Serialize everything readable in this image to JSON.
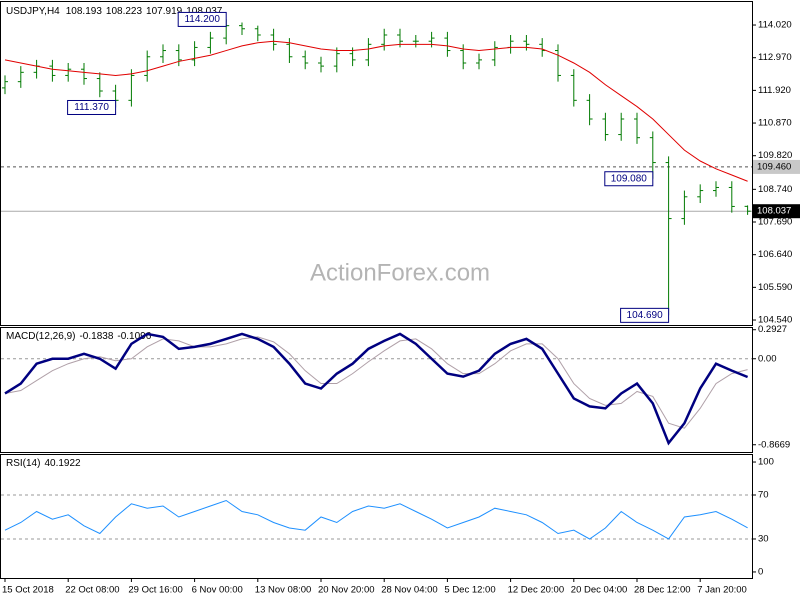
{
  "chart_data": [
    {
      "type": "ohlc",
      "title": "USDJPY,H4",
      "color": "#007a00",
      "watermark": "ActionForex.com",
      "categories": [
        "15 Oct 2018",
        null,
        null,
        null,
        "22 Oct 08:00",
        null,
        null,
        null,
        "29 Oct 16:00",
        null,
        null,
        null,
        "6 Nov 00:00",
        null,
        null,
        null,
        "13 Nov 08:00",
        null,
        null,
        null,
        "20 Nov 20:00",
        null,
        null,
        null,
        "28 Nov 04:00",
        null,
        null,
        null,
        "5 Dec 12:00",
        null,
        null,
        null,
        "12 Dec 20:00",
        null,
        null,
        null,
        "20 Dec 04:00",
        null,
        null,
        null,
        "28 Dec 12:00",
        null,
        null,
        null,
        "7 Jan 20:00",
        null,
        null,
        null
      ],
      "open": [
        112.0,
        112.2,
        112.5,
        112.7,
        112.4,
        112.6,
        112.3,
        111.9,
        111.6,
        112.4,
        113.0,
        113.2,
        112.9,
        113.3,
        113.6,
        114.0,
        113.9,
        113.7,
        113.4,
        113.0,
        112.8,
        112.7,
        113.1,
        112.9,
        113.4,
        113.7,
        113.5,
        113.5,
        113.6,
        113.2,
        112.8,
        112.9,
        113.3,
        113.5,
        113.4,
        113.2,
        112.4,
        111.6,
        111.0,
        110.5,
        111.0,
        110.4,
        109.6,
        107.8,
        108.5,
        108.7,
        108.8,
        108.193
      ],
      "high": [
        112.4,
        112.7,
        112.9,
        112.9,
        112.8,
        112.8,
        112.5,
        112.1,
        112.6,
        113.2,
        113.4,
        113.4,
        113.5,
        113.8,
        114.2,
        114.1,
        114.0,
        113.9,
        113.6,
        113.2,
        113.0,
        113.3,
        113.3,
        113.6,
        113.9,
        113.9,
        113.7,
        113.8,
        113.8,
        113.4,
        113.1,
        113.5,
        113.7,
        113.7,
        113.6,
        113.4,
        112.6,
        111.8,
        111.2,
        111.2,
        111.2,
        110.6,
        109.8,
        108.7,
        108.9,
        109.0,
        109.0,
        108.223
      ],
      "low": [
        111.8,
        112.0,
        112.3,
        112.2,
        112.2,
        112.1,
        111.7,
        111.37,
        111.4,
        112.2,
        112.8,
        112.7,
        112.7,
        113.1,
        113.4,
        113.7,
        113.5,
        113.2,
        112.8,
        112.6,
        112.5,
        112.5,
        112.7,
        112.7,
        113.2,
        113.3,
        113.3,
        113.3,
        113.0,
        112.6,
        112.6,
        112.7,
        113.1,
        113.2,
        113.0,
        112.2,
        111.4,
        110.8,
        110.3,
        110.3,
        110.2,
        109.08,
        104.69,
        107.6,
        108.3,
        108.5,
        107.99,
        107.919
      ],
      "close": [
        112.2,
        112.5,
        112.7,
        112.4,
        112.6,
        112.3,
        111.9,
        111.6,
        112.4,
        113.0,
        113.2,
        112.9,
        113.3,
        113.6,
        114.0,
        113.9,
        113.7,
        113.4,
        113.0,
        112.8,
        112.7,
        113.1,
        112.9,
        113.4,
        113.7,
        113.5,
        113.5,
        113.6,
        113.2,
        112.8,
        112.9,
        113.3,
        113.5,
        113.4,
        113.2,
        112.4,
        111.6,
        111.0,
        110.5,
        111.0,
        110.4,
        109.6,
        107.8,
        108.5,
        108.7,
        108.8,
        108.19,
        108.037
      ],
      "ma": {
        "color": "#e00000",
        "values": [
          112.9,
          112.8,
          112.7,
          112.6,
          112.55,
          112.5,
          112.45,
          112.4,
          112.45,
          112.55,
          112.7,
          112.85,
          112.95,
          113.05,
          113.2,
          113.35,
          113.45,
          113.5,
          113.45,
          113.35,
          113.25,
          113.2,
          113.2,
          113.25,
          113.35,
          113.4,
          113.4,
          113.4,
          113.35,
          113.25,
          113.2,
          113.25,
          113.3,
          113.3,
          113.25,
          113.05,
          112.8,
          112.5,
          112.1,
          111.75,
          111.4,
          111.0,
          110.5,
          110.0,
          109.65,
          109.4,
          109.2,
          109.0
        ]
      },
      "ylim": [
        104.38,
        114.76
      ],
      "yticks": [
        {
          "value": 114.02,
          "label": "114.020"
        },
        {
          "value": 112.97,
          "label": "112.970"
        },
        {
          "value": 111.92,
          "label": "111.920"
        },
        {
          "value": 110.87,
          "label": "110.870"
        },
        {
          "value": 109.82,
          "label": "109.820"
        },
        {
          "value": 108.74,
          "label": "108.740"
        },
        {
          "value": 107.69,
          "label": "107.690"
        },
        {
          "value": 106.64,
          "label": "106.640"
        },
        {
          "value": 105.59,
          "label": "105.590"
        },
        {
          "value": 104.54,
          "label": "104.540"
        }
      ],
      "levels": [
        {
          "value": 109.46,
          "label": "109.460"
        }
      ],
      "annotations": [
        {
          "bar": 14,
          "value": 114.2,
          "label": "114.200"
        },
        {
          "bar": 7,
          "value": 111.37,
          "label": "111.370"
        },
        {
          "bar": 41,
          "value": 109.08,
          "label": "109.080"
        },
        {
          "bar": 42,
          "value": 104.69,
          "label": "104.690"
        }
      ]
    },
    {
      "type": "line",
      "title": "MACD(12,26,9)",
      "series": [
        {
          "color": "#000080",
          "width": 2.5,
          "values": [
            -0.35,
            -0.25,
            -0.05,
            0.0,
            0.0,
            0.05,
            0.0,
            -0.1,
            0.15,
            0.25,
            0.22,
            0.1,
            0.12,
            0.15,
            0.2,
            0.25,
            0.2,
            0.12,
            -0.05,
            -0.25,
            -0.3,
            -0.15,
            -0.05,
            0.1,
            0.18,
            0.25,
            0.15,
            0.0,
            -0.15,
            -0.18,
            -0.12,
            0.05,
            0.15,
            0.2,
            0.1,
            -0.15,
            -0.4,
            -0.48,
            -0.5,
            -0.35,
            -0.25,
            -0.45,
            -0.85,
            -0.65,
            -0.3,
            -0.05,
            -0.12,
            -0.1838
          ]
        },
        {
          "color": "#b0a0a8",
          "width": 1,
          "values": [
            -0.35,
            -0.32,
            -0.22,
            -0.12,
            -0.05,
            0.0,
            0.02,
            -0.02,
            0.0,
            0.12,
            0.2,
            0.18,
            0.12,
            0.12,
            0.15,
            0.2,
            0.22,
            0.17,
            0.05,
            -0.12,
            -0.25,
            -0.25,
            -0.15,
            -0.03,
            0.08,
            0.18,
            0.2,
            0.1,
            -0.05,
            -0.15,
            -0.15,
            -0.05,
            0.08,
            0.15,
            0.15,
            0.0,
            -0.25,
            -0.4,
            -0.47,
            -0.45,
            -0.33,
            -0.38,
            -0.65,
            -0.7,
            -0.5,
            -0.25,
            -0.15,
            -0.1096
          ]
        }
      ],
      "ylim": [
        -0.94,
        0.31
      ],
      "yticks": [
        0.2927,
        {
          "value": 0,
          "label": "0.00"
        },
        -0.8669
      ],
      "dashed_levels": [
        0
      ]
    },
    {
      "type": "line",
      "title": "RSI(14)",
      "series": [
        {
          "color": "#1e90ff",
          "width": 1,
          "values": [
            38,
            45,
            55,
            48,
            52,
            42,
            35,
            50,
            62,
            58,
            60,
            50,
            55,
            60,
            65,
            55,
            52,
            45,
            40,
            38,
            50,
            45,
            55,
            60,
            58,
            62,
            55,
            48,
            40,
            45,
            50,
            58,
            55,
            52,
            45,
            35,
            38,
            30,
            40,
            55,
            45,
            38,
            30,
            50,
            52,
            55,
            48,
            40.1922
          ]
        }
      ],
      "ylim": [
        -5.5,
        106.4
      ],
      "yticks": [
        100,
        70,
        30,
        0
      ],
      "dashed_levels": [
        70,
        30
      ]
    }
  ]
}
